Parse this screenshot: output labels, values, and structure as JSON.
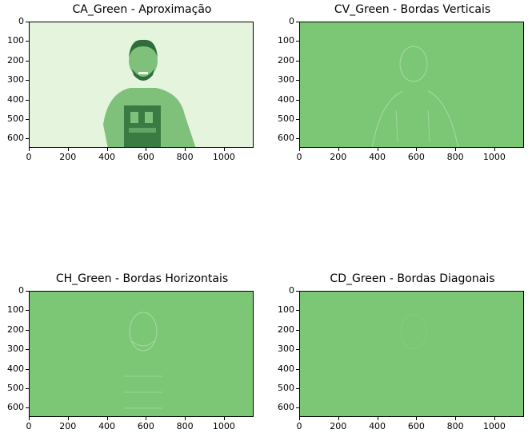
{
  "panels": [
    {
      "title": "CA_Green - Aproximação",
      "kind": "approximation"
    },
    {
      "title": "CV_Green - Bordas Verticais",
      "kind": "vertical-edges"
    },
    {
      "title": "CH_Green - Bordas Horizontais",
      "kind": "horizontal-edges"
    },
    {
      "title": "CD_Green - Bordas Diagonais",
      "kind": "diagonal-edges"
    }
  ],
  "axes": {
    "x_ticks": [
      "0",
      "200",
      "400",
      "600",
      "800",
      "1000"
    ],
    "y_ticks": [
      "0",
      "100",
      "200",
      "300",
      "400",
      "500",
      "600"
    ]
  },
  "colors": {
    "approx_background": "#e4f4dd",
    "approx_shirt": "#7fc07a",
    "approx_dark": "#2d6e3a",
    "edge_background": "#7bc776",
    "edge_line": "#a8d9a2"
  }
}
